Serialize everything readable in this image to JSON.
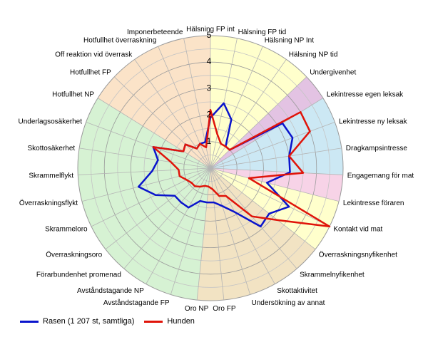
{
  "chart_data": {
    "type": "radar",
    "r_range": [
      0,
      5
    ],
    "r_ticks": [
      "1",
      "2",
      "3",
      "4",
      "5"
    ],
    "categories": [
      "Hälsning FP int",
      "Hälsning FP tid",
      "Hälsning NP Int",
      "Hälsning NP tid",
      "Undergivenhet",
      "Lekintresse egen leksak",
      "Lekintresse ny leksak",
      "Dragkampsintresse",
      "Engagemang för mat",
      "Lekintresse föraren",
      "Kontakt vid mat",
      "Överraskningsnyfikenhet",
      "Skrammelnyfikenhet",
      "Skottaktivitet",
      "Undersökning av annat",
      "Oro FP",
      "Oro NP",
      "Avståndstagande FP",
      "Avståndstagande NP",
      "Förarbundenhet promenad",
      "Överraskningsoro",
      "Skrammeloro",
      "Överraskningsflykt",
      "Skrammelflykt",
      "Skottosäkerhet",
      "Underlagsosäkerhet",
      "Hotfullhet NP",
      "Hotfullhet FP",
      "Off reaktion vid överrask",
      "Hotfullhet överraskning",
      "Imponerbeteende"
    ],
    "series": [
      {
        "name": "Rasen (1 207 st, samtliga)",
        "color": "#0a14cc",
        "values": [
          1.9,
          2.5,
          2.0,
          1.0,
          1.0,
          3.2,
          3.3,
          3.0,
          3.0,
          2.2,
          3.3,
          2.8,
          2.9,
          1.9,
          1.5,
          1.3,
          1.3,
          1.3,
          1.7,
          1.7,
          1.7,
          2.3,
          2.8,
          2.2,
          2.0,
          2.3,
          1.2,
          1.3,
          0.9,
          1.0,
          1.0
        ]
      },
      {
        "name": "Hunden",
        "color": "#e0140a",
        "values": [
          2.2,
          1.3,
          1.0,
          1.0,
          1.0,
          4.0,
          4.0,
          3.0,
          3.5,
          1.5,
          5.0,
          3.2,
          2.4,
          1.2,
          1.1,
          0.8,
          0.7,
          0.7,
          0.8,
          0.9,
          0.9,
          1.0,
          1.2,
          1.2,
          1.5,
          2.3,
          1.2,
          1.3,
          0.9,
          1.0,
          0.8
        ]
      }
    ],
    "background_sectors": [
      {
        "from": 0,
        "to": 4,
        "color": "#ffffcc"
      },
      {
        "from": 4,
        "to": 5,
        "color": "#e3c3e3"
      },
      {
        "from": 5,
        "to": 8,
        "color": "#cce8f4"
      },
      {
        "from": 8,
        "to": 9,
        "color": "#f7d3e7"
      },
      {
        "from": 9,
        "to": 11,
        "color": "#ffffcc"
      },
      {
        "from": 11,
        "to": 16,
        "color": "#f2e3c3"
      },
      {
        "from": 16,
        "to": 26,
        "color": "#d6f2d3"
      },
      {
        "from": 26,
        "to": 31,
        "color": "#fbe3c8"
      }
    ]
  }
}
